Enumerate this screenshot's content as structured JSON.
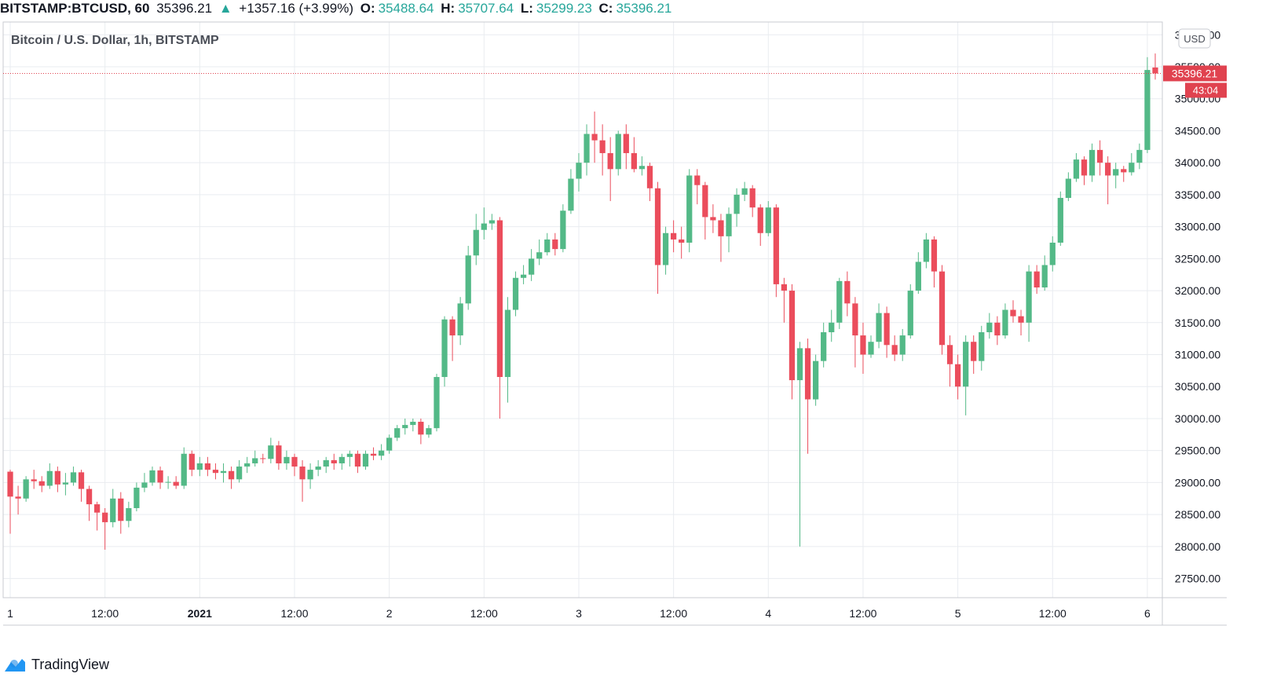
{
  "header": {
    "symbol": "BITSTAMP:BTCUSD, 60",
    "last": "35396.21",
    "change_arrow": "▲",
    "change": "+1357.16 (+3.99%)",
    "open_label": "O:",
    "open": "35488.64",
    "high_label": "H:",
    "high": "35707.64",
    "low_label": "L:",
    "low": "35299.23",
    "close_label": "C:",
    "close": "35396.21"
  },
  "legend_title": "Bitcoin / U.S. Dollar, 1h, BITSTAMP",
  "currency_button": "USD",
  "price_label": "35396.21",
  "countdown_label": "43:04",
  "brand": "TradingView",
  "colors": {
    "up": "#53b987",
    "down": "#eb4d5c",
    "grid": "#e9ecf0",
    "text": "#131722",
    "accent": "#e0424f"
  },
  "chart_data": {
    "type": "candlestick",
    "title": "Bitcoin / U.S. Dollar, 1h, BITSTAMP",
    "ylim": [
      27200,
      36200
    ],
    "y_ticks": [
      "27500.00",
      "28000.00",
      "28500.00",
      "29000.00",
      "29500.00",
      "30000.00",
      "30500.00",
      "31000.00",
      "31500.00",
      "32000.00",
      "32500.00",
      "33000.00",
      "33500.00",
      "34000.00",
      "34500.00",
      "35000.00",
      "35500.00",
      "36000.00"
    ],
    "x_ticks": [
      {
        "label": "1",
        "index": 0
      },
      {
        "label": "12:00",
        "index": 12
      },
      {
        "label": "2021",
        "index": 24
      },
      {
        "label": "12:00",
        "index": 36
      },
      {
        "label": "2",
        "index": 48
      },
      {
        "label": "12:00",
        "index": 60
      },
      {
        "label": "3",
        "index": 72
      },
      {
        "label": "12:00",
        "index": 84
      },
      {
        "label": "4",
        "index": 96
      },
      {
        "label": "12:00",
        "index": 108
      },
      {
        "label": "5",
        "index": 120
      },
      {
        "label": "12:00",
        "index": 132
      },
      {
        "label": "6",
        "index": 144
      }
    ],
    "last_price": 35396.21,
    "candles": [
      [
        29170,
        28780,
        29200,
        28200
      ],
      [
        28780,
        28750,
        28950,
        28500
      ],
      [
        28750,
        29050,
        29100,
        28700
      ],
      [
        29050,
        29020,
        29200,
        28900
      ],
      [
        29020,
        28950,
        29100,
        28850
      ],
      [
        28950,
        29180,
        29300,
        28900
      ],
      [
        29180,
        28970,
        29250,
        28850
      ],
      [
        28970,
        29000,
        29150,
        28800
      ],
      [
        29000,
        29160,
        29250,
        28950
      ],
      [
        29160,
        28900,
        29200,
        28700
      ],
      [
        28900,
        28660,
        28950,
        28400
      ],
      [
        28660,
        28530,
        28700,
        28250
      ],
      [
        28530,
        28380,
        28600,
        27950
      ],
      [
        28380,
        28750,
        28900,
        28300
      ],
      [
        28750,
        28400,
        28850,
        28200
      ],
      [
        28400,
        28600,
        28700,
        28300
      ],
      [
        28600,
        28920,
        29000,
        28550
      ],
      [
        28920,
        29000,
        29150,
        28850
      ],
      [
        29000,
        29190,
        29250,
        28950
      ],
      [
        29190,
        29000,
        29250,
        28900
      ],
      [
        29000,
        29010,
        29100,
        28900
      ],
      [
        29010,
        28950,
        29100,
        28900
      ],
      [
        28950,
        29450,
        29550,
        28900
      ],
      [
        29450,
        29200,
        29500,
        29100
      ],
      [
        29200,
        29300,
        29400,
        29100
      ],
      [
        29300,
        29200,
        29400,
        29100
      ],
      [
        29200,
        29150,
        29300,
        29050
      ],
      [
        29150,
        29180,
        29300,
        29000
      ],
      [
        29180,
        29050,
        29250,
        28900
      ],
      [
        29050,
        29250,
        29350,
        29000
      ],
      [
        29250,
        29300,
        29400,
        29150
      ],
      [
        29300,
        29380,
        29500,
        29250
      ],
      [
        29380,
        29370,
        29450,
        29300
      ],
      [
        29370,
        29580,
        29700,
        29300
      ],
      [
        29580,
        29300,
        29650,
        29200
      ],
      [
        29300,
        29400,
        29500,
        29200
      ],
      [
        29400,
        29250,
        29450,
        29100
      ],
      [
        29250,
        29050,
        29350,
        28700
      ],
      [
        29050,
        29200,
        29300,
        28900
      ],
      [
        29200,
        29250,
        29350,
        29100
      ],
      [
        29250,
        29350,
        29400,
        29150
      ],
      [
        29350,
        29300,
        29450,
        29200
      ],
      [
        29300,
        29400,
        29450,
        29200
      ],
      [
        29400,
        29450,
        29500,
        29250
      ],
      [
        29450,
        29250,
        29500,
        29150
      ],
      [
        29250,
        29450,
        29500,
        29200
      ],
      [
        29450,
        29420,
        29550,
        29350
      ],
      [
        29420,
        29500,
        29600,
        29350
      ],
      [
        29500,
        29700,
        29750,
        29450
      ],
      [
        29700,
        29850,
        29900,
        29650
      ],
      [
        29850,
        29900,
        30000,
        29750
      ],
      [
        29900,
        29950,
        30000,
        29800
      ],
      [
        29950,
        29750,
        30000,
        29600
      ],
      [
        29750,
        29850,
        29900,
        29700
      ],
      [
        29850,
        30650,
        30700,
        29800
      ],
      [
        30650,
        31550,
        31600,
        30500
      ],
      [
        31550,
        31300,
        31600,
        30900
      ],
      [
        31300,
        31800,
        31900,
        31150
      ],
      [
        31800,
        32550,
        32700,
        31700
      ],
      [
        32550,
        32950,
        33200,
        32400
      ],
      [
        32950,
        33050,
        33300,
        32800
      ],
      [
        33050,
        33100,
        33200,
        32950
      ],
      [
        33100,
        30650,
        33150,
        30000
      ],
      [
        30650,
        31700,
        31900,
        30250
      ],
      [
        31700,
        32200,
        32300,
        31600
      ],
      [
        32200,
        32250,
        32400,
        32100
      ],
      [
        32250,
        32500,
        32650,
        32150
      ],
      [
        32500,
        32600,
        32800,
        32400
      ],
      [
        32600,
        32800,
        32900,
        32550
      ],
      [
        32800,
        32650,
        32900,
        32550
      ],
      [
        32650,
        33250,
        33350,
        32600
      ],
      [
        33250,
        33750,
        33900,
        33200
      ],
      [
        33750,
        34000,
        34150,
        33550
      ],
      [
        34000,
        34450,
        34600,
        33800
      ],
      [
        34450,
        34350,
        34800,
        34000
      ],
      [
        34350,
        34150,
        34600,
        33800
      ],
      [
        34150,
        33900,
        34400,
        33400
      ],
      [
        33900,
        34450,
        34500,
        33800
      ],
      [
        34450,
        34150,
        34600,
        33900
      ],
      [
        34150,
        33900,
        34400,
        33850
      ],
      [
        33900,
        33950,
        34100,
        33800
      ],
      [
        33950,
        33600,
        34000,
        33400
      ],
      [
        33600,
        32400,
        33700,
        31950
      ],
      [
        32400,
        32900,
        33000,
        32250
      ],
      [
        32900,
        32800,
        33100,
        32600
      ],
      [
        32800,
        32750,
        33000,
        32500
      ],
      [
        32750,
        33800,
        33900,
        32600
      ],
      [
        33800,
        33650,
        33900,
        33350
      ],
      [
        33650,
        33150,
        33700,
        32800
      ],
      [
        33150,
        33100,
        33350,
        32900
      ],
      [
        33100,
        32850,
        33200,
        32450
      ],
      [
        32850,
        33200,
        33300,
        32600
      ],
      [
        33200,
        33500,
        33600,
        33000
      ],
      [
        33500,
        33600,
        33700,
        33400
      ],
      [
        33600,
        33300,
        33650,
        33150
      ],
      [
        33300,
        32900,
        33350,
        32700
      ],
      [
        32900,
        33300,
        33400,
        32850
      ],
      [
        33300,
        32100,
        33350,
        31900
      ],
      [
        32100,
        32000,
        32200,
        31500
      ],
      [
        32000,
        30600,
        32100,
        30300
      ],
      [
        30600,
        31100,
        31200,
        28000
      ],
      [
        31100,
        30300,
        31250,
        29450
      ],
      [
        30300,
        30900,
        31000,
        30200
      ],
      [
        30900,
        31350,
        31500,
        30800
      ],
      [
        31350,
        31500,
        31700,
        31200
      ],
      [
        31500,
        32150,
        32200,
        31400
      ],
      [
        32150,
        31800,
        32300,
        31600
      ],
      [
        31800,
        31300,
        31900,
        30800
      ],
      [
        31300,
        31000,
        31500,
        30700
      ],
      [
        31000,
        31200,
        31300,
        30950
      ],
      [
        31200,
        31650,
        31800,
        31100
      ],
      [
        31650,
        31150,
        31750,
        30950
      ],
      [
        31150,
        31000,
        31300,
        30900
      ],
      [
        31000,
        31300,
        31400,
        30900
      ],
      [
        31300,
        32000,
        32100,
        31250
      ],
      [
        32000,
        32450,
        32600,
        31950
      ],
      [
        32450,
        32800,
        32900,
        32350
      ],
      [
        32800,
        32300,
        32850,
        32050
      ],
      [
        32300,
        31150,
        32400,
        31000
      ],
      [
        31150,
        30850,
        31300,
        30500
      ],
      [
        30850,
        30500,
        31000,
        30300
      ],
      [
        30500,
        31200,
        31300,
        30050
      ],
      [
        31200,
        30900,
        31300,
        30700
      ],
      [
        30900,
        31350,
        31450,
        30750
      ],
      [
        31350,
        31500,
        31650,
        31250
      ],
      [
        31500,
        31300,
        31600,
        31150
      ],
      [
        31300,
        31700,
        31800,
        31250
      ],
      [
        31700,
        31600,
        31850,
        31500
      ],
      [
        31600,
        31500,
        31700,
        31300
      ],
      [
        31500,
        32300,
        32400,
        31200
      ],
      [
        32300,
        32050,
        32400,
        31950
      ],
      [
        32050,
        32400,
        32550,
        32000
      ],
      [
        32400,
        32750,
        32850,
        32300
      ],
      [
        32750,
        33450,
        33550,
        32700
      ],
      [
        33450,
        33750,
        33850,
        33400
      ],
      [
        33750,
        34050,
        34150,
        33700
      ],
      [
        34050,
        33800,
        34100,
        33650
      ],
      [
        33800,
        34200,
        34300,
        33700
      ],
      [
        34200,
        34000,
        34350,
        33800
      ],
      [
        34000,
        33800,
        34100,
        33350
      ],
      [
        33800,
        33900,
        34000,
        33600
      ],
      [
        33900,
        33850,
        33950,
        33700
      ],
      [
        33850,
        34000,
        34150,
        33800
      ],
      [
        34000,
        34200,
        34300,
        33900
      ],
      [
        34200,
        35450,
        35650,
        34150
      ],
      [
        35488.64,
        35396.21,
        35707.64,
        35299.23
      ]
    ]
  }
}
